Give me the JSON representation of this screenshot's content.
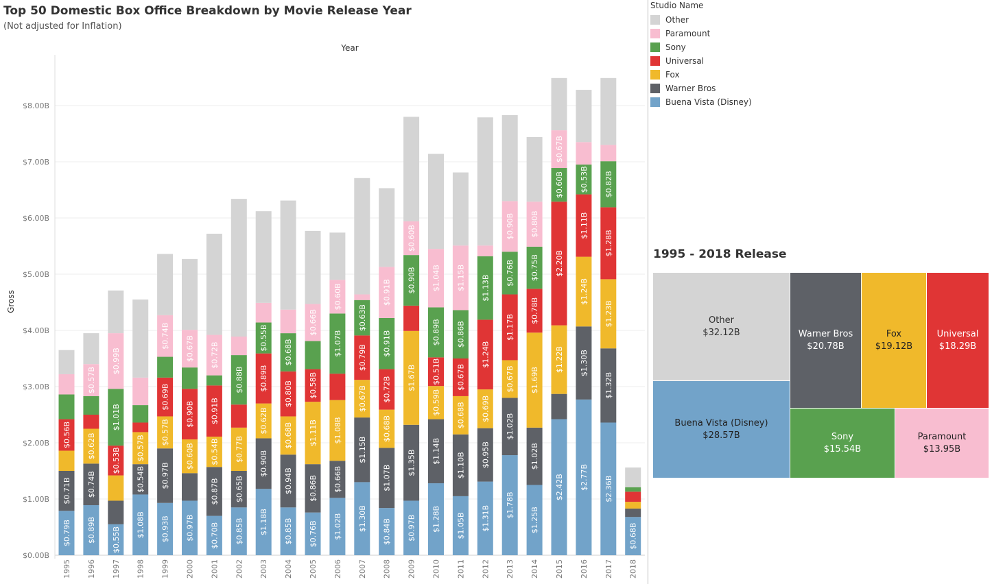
{
  "header": {
    "title": "Top 50 Domestic Box Office Breakdown by Movie Release Year",
    "subtitle": "(Not adjusted for Inflation)"
  },
  "legend": {
    "title": "Studio Name",
    "items": [
      {
        "label": "Other",
        "color": "#d4d4d4"
      },
      {
        "label": "Paramount",
        "color": "#f8bdd0"
      },
      {
        "label": "Sony",
        "color": "#59a14f"
      },
      {
        "label": "Universal",
        "color": "#e03535"
      },
      {
        "label": "Fox",
        "color": "#f0b92b"
      },
      {
        "label": "Warner Bros",
        "color": "#5e6167"
      },
      {
        "label": "Buena Vista (Disney)",
        "color": "#72a3c9"
      }
    ]
  },
  "chart_data": [
    {
      "type": "bar",
      "stacked": true,
      "title": "Top 50 Domestic Box Office Breakdown by Movie Release Year",
      "subtitle": "(Not adjusted for Inflation)",
      "xlabel": "Year",
      "ylabel": "Gross",
      "ylim": [
        0,
        8.5
      ],
      "yticks": [
        "$0.00B",
        "$1.00B",
        "$2.00B",
        "$3.00B",
        "$4.00B",
        "$5.00B",
        "$6.00B",
        "$7.00B",
        "$8.00B"
      ],
      "grid": true,
      "legend_position": "right",
      "categories": [
        "1995",
        "1996",
        "1997",
        "1998",
        "1999",
        "2000",
        "2001",
        "2002",
        "2003",
        "2004",
        "2005",
        "2006",
        "2007",
        "2008",
        "2009",
        "2010",
        "2011",
        "2012",
        "2013",
        "2014",
        "2015",
        "2016",
        "2017",
        "2018"
      ],
      "series": [
        {
          "name": "Buena Vista (Disney)",
          "color": "#72a3c9",
          "values": [
            0.79,
            0.89,
            0.55,
            1.08,
            0.93,
            0.97,
            0.7,
            0.85,
            1.18,
            0.85,
            0.76,
            1.02,
            1.3,
            0.84,
            0.97,
            1.28,
            1.05,
            1.31,
            1.78,
            1.25,
            2.42,
            2.77,
            2.36,
            0.68
          ],
          "labels": [
            "$0.79B",
            "$0.89B",
            "$0.55B",
            "$1.08B",
            "$0.93B",
            "$0.97B",
            "$0.70B",
            "$0.85B",
            "$1.18B",
            "$0.85B",
            "$0.76B",
            "$1.02B",
            "$1.30B",
            "$0.84B",
            "$0.97B",
            "$1.28B",
            "$1.05B",
            "$1.31B",
            "$1.78B",
            "$1.25B",
            "$2.42B",
            "$2.77B",
            "$2.36B",
            "$0.68B"
          ]
        },
        {
          "name": "Warner Bros",
          "color": "#5e6167",
          "values": [
            0.71,
            0.74,
            0.42,
            0.54,
            0.97,
            0.49,
            0.87,
            0.65,
            0.9,
            0.94,
            0.86,
            0.66,
            1.15,
            1.07,
            1.35,
            1.14,
            1.1,
            0.95,
            1.02,
            1.02,
            0.45,
            1.3,
            1.32,
            0.15
          ],
          "labels": [
            "$0.71B",
            "$0.74B",
            "",
            "$0.54B",
            "$0.97B",
            "",
            "$0.87B",
            "$0.65B",
            "$0.90B",
            "$0.94B",
            "$0.86B",
            "$0.66B",
            "$1.15B",
            "$1.07B",
            "$1.35B",
            "$1.14B",
            "$1.10B",
            "$0.95B",
            "$1.02B",
            "$1.02B",
            "",
            "$1.30B",
            "$1.32B",
            ""
          ]
        },
        {
          "name": "Fox",
          "color": "#f0b92b",
          "values": [
            0.36,
            0.62,
            0.45,
            0.57,
            0.57,
            0.6,
            0.54,
            0.77,
            0.62,
            0.68,
            1.11,
            1.08,
            0.67,
            0.68,
            1.67,
            0.59,
            0.68,
            0.69,
            0.67,
            1.69,
            1.22,
            1.24,
            1.23,
            0.12
          ],
          "labels": [
            "",
            "$0.62B",
            "",
            "$0.57B",
            "$0.57B",
            "$0.60B",
            "$0.54B",
            "$0.77B",
            "$0.62B",
            "$0.68B",
            "$1.11B",
            "$1.08B",
            "$0.67B",
            "$0.68B",
            "$1.67B",
            "$0.59B",
            "$0.68B",
            "$0.69B",
            "$0.67B",
            "$1.69B",
            "$1.22B",
            "$1.24B",
            "$1.23B",
            ""
          ]
        },
        {
          "name": "Universal",
          "color": "#e03535",
          "values": [
            0.56,
            0.25,
            0.53,
            0.17,
            0.69,
            0.9,
            0.91,
            0.41,
            0.89,
            0.8,
            0.58,
            0.47,
            0.79,
            0.72,
            0.45,
            0.51,
            0.67,
            1.24,
            1.17,
            0.78,
            2.2,
            1.11,
            1.28,
            0.18
          ],
          "labels": [
            "$0.56B",
            "",
            "$0.53B",
            "",
            "$0.69B",
            "$0.90B",
            "$0.91B",
            "",
            "$0.89B",
            "$0.80B",
            "$0.58B",
            "",
            "$0.79B",
            "$0.72B",
            "",
            "$0.51B",
            "$0.67B",
            "$1.24B",
            "$1.17B",
            "$0.78B",
            "$2.20B",
            "$1.11B",
            "$1.28B",
            ""
          ]
        },
        {
          "name": "Sony",
          "color": "#59a14f",
          "values": [
            0.44,
            0.33,
            1.01,
            0.31,
            0.37,
            0.38,
            0.18,
            0.88,
            0.55,
            0.68,
            0.5,
            1.07,
            0.63,
            0.91,
            0.9,
            0.89,
            0.86,
            1.13,
            0.76,
            0.75,
            0.6,
            0.53,
            0.82,
            0.08
          ],
          "labels": [
            "",
            "",
            "$1.01B",
            "",
            "",
            "",
            "",
            "$0.88B",
            "$0.55B",
            "$0.68B",
            "",
            "$1.07B",
            "$0.63B",
            "$0.91B",
            "$0.90B",
            "$0.89B",
            "$0.86B",
            "$1.13B",
            "$0.76B",
            "$0.75B",
            "$0.60B",
            "$0.53B",
            "$0.82B",
            ""
          ]
        },
        {
          "name": "Paramount",
          "color": "#f8bdd0",
          "values": [
            0.36,
            0.57,
            0.99,
            0.49,
            0.74,
            0.67,
            0.72,
            0.33,
            0.35,
            0.42,
            0.66,
            0.6,
            0.1,
            0.91,
            0.6,
            1.04,
            1.15,
            0.19,
            0.9,
            0.8,
            0.67,
            0.4,
            0.29,
            0.0
          ],
          "labels": [
            "",
            "$0.57B",
            "$0.99B",
            "",
            "$0.74B",
            "$0.67B",
            "$0.72B",
            "",
            "",
            "",
            "$0.66B",
            "$0.60B",
            "",
            "$0.91B",
            "$0.60B",
            "$1.04B",
            "$1.15B",
            "",
            "$0.90B",
            "$0.80B",
            "$0.67B",
            "",
            "",
            ""
          ]
        },
        {
          "name": "Other",
          "color": "#d4d4d4",
          "values": [
            0.43,
            0.55,
            0.76,
            1.39,
            1.09,
            1.26,
            1.8,
            2.45,
            1.63,
            1.94,
            1.3,
            0.84,
            2.07,
            1.4,
            1.86,
            1.69,
            1.3,
            2.28,
            1.53,
            1.15,
            0.93,
            0.93,
            1.19,
            0.35
          ],
          "labels": [
            "",
            "",
            "",
            "",
            "",
            "",
            "",
            "",
            "",
            "",
            "",
            "",
            "",
            "",
            "",
            "",
            "",
            "",
            "",
            "",
            "",
            "",
            "",
            ""
          ]
        }
      ]
    },
    {
      "type": "treemap",
      "title": "1995 - 2018 Release",
      "items": [
        {
          "name": "Other",
          "value": 32.12,
          "label": "$32.12B",
          "color": "#d4d4d4",
          "text_color": "#333333"
        },
        {
          "name": "Buena Vista (Disney)",
          "value": 28.57,
          "label": "$28.57B",
          "color": "#72a3c9",
          "text_color": "#222222"
        },
        {
          "name": "Warner Bros",
          "value": 20.78,
          "label": "$20.78B",
          "color": "#5e6167",
          "text_color": "#ffffff"
        },
        {
          "name": "Fox",
          "value": 19.12,
          "label": "$19.12B",
          "color": "#f0b92b",
          "text_color": "#222222"
        },
        {
          "name": "Universal",
          "value": 18.29,
          "label": "$18.29B",
          "color": "#e03535",
          "text_color": "#ffffff"
        },
        {
          "name": "Sony",
          "value": 15.54,
          "label": "$15.54B",
          "color": "#59a14f",
          "text_color": "#ffffff"
        },
        {
          "name": "Paramount",
          "value": 13.95,
          "label": "$13.95B",
          "color": "#f8bdd0",
          "text_color": "#222222"
        }
      ]
    }
  ]
}
